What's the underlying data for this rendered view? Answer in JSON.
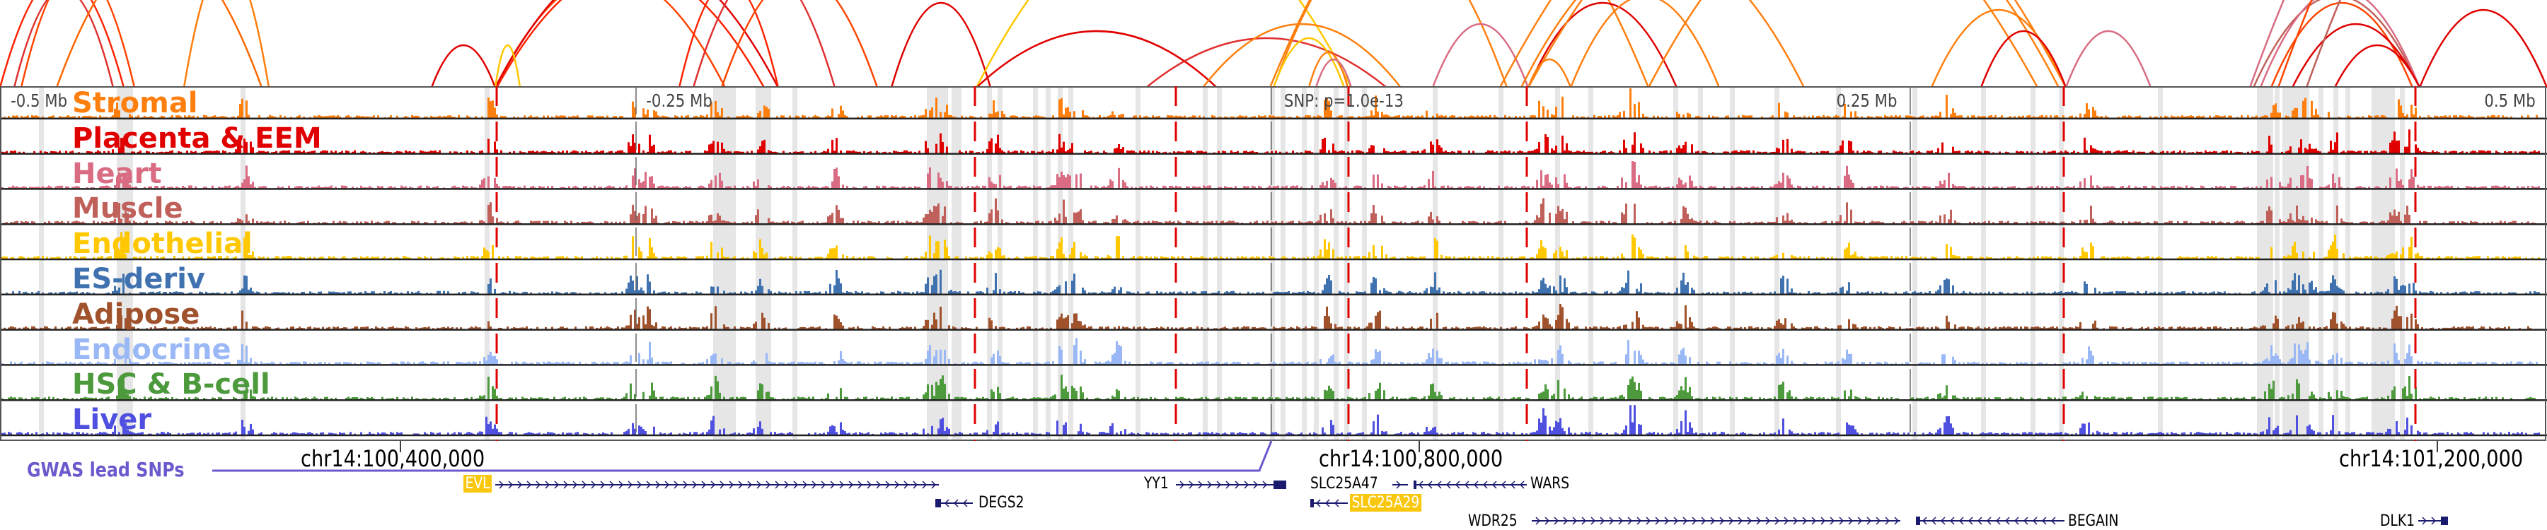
{
  "tracks": [
    {
      "name": "Stromal",
      "color": "#ff7f0e"
    },
    {
      "name": "Placenta & EEM",
      "color": "#e00000"
    },
    {
      "name": "Heart",
      "color": "#d96b82"
    },
    {
      "name": "Muscle",
      "color": "#c0605a"
    },
    {
      "name": "Endothelial",
      "color": "#ffc800"
    },
    {
      "name": "ES-deriv",
      "color": "#3f72af"
    },
    {
      "name": "Adipose",
      "color": "#a0522d"
    },
    {
      "name": "Endocrine",
      "color": "#9ab8f5"
    },
    {
      "name": "HSC & B-cell",
      "color": "#4c9a3c"
    },
    {
      "name": "Liver",
      "color": "#5050e0"
    }
  ],
  "axis": {
    "minus_half": "-0.5 Mb",
    "minus_quarter": "-0.25 Mb",
    "snp": "SNP: p=1.0e-13",
    "plus_quarter": "0.25 Mb",
    "plus_half": "0.5 Mb"
  },
  "coordinates": [
    "chr14:100,400,000",
    "chr14:100,800,000",
    "chr14:101,200,000"
  ],
  "gwas_label": "GWAS lead SNPs",
  "gwas_color": "#6a5acd",
  "genes": {
    "evl": "EVL",
    "degs2": "DEGS2",
    "yy1": "YY1",
    "slc25a47": "SLC25A47",
    "wars": "WARS",
    "slc25a29": "SLC25A29",
    "wdr25": "WDR25",
    "begain": "BEGAIN",
    "dlk1": "DLK1"
  },
  "highlight_color": "#f9c80e",
  "gene_color": "#1a1a6e"
}
